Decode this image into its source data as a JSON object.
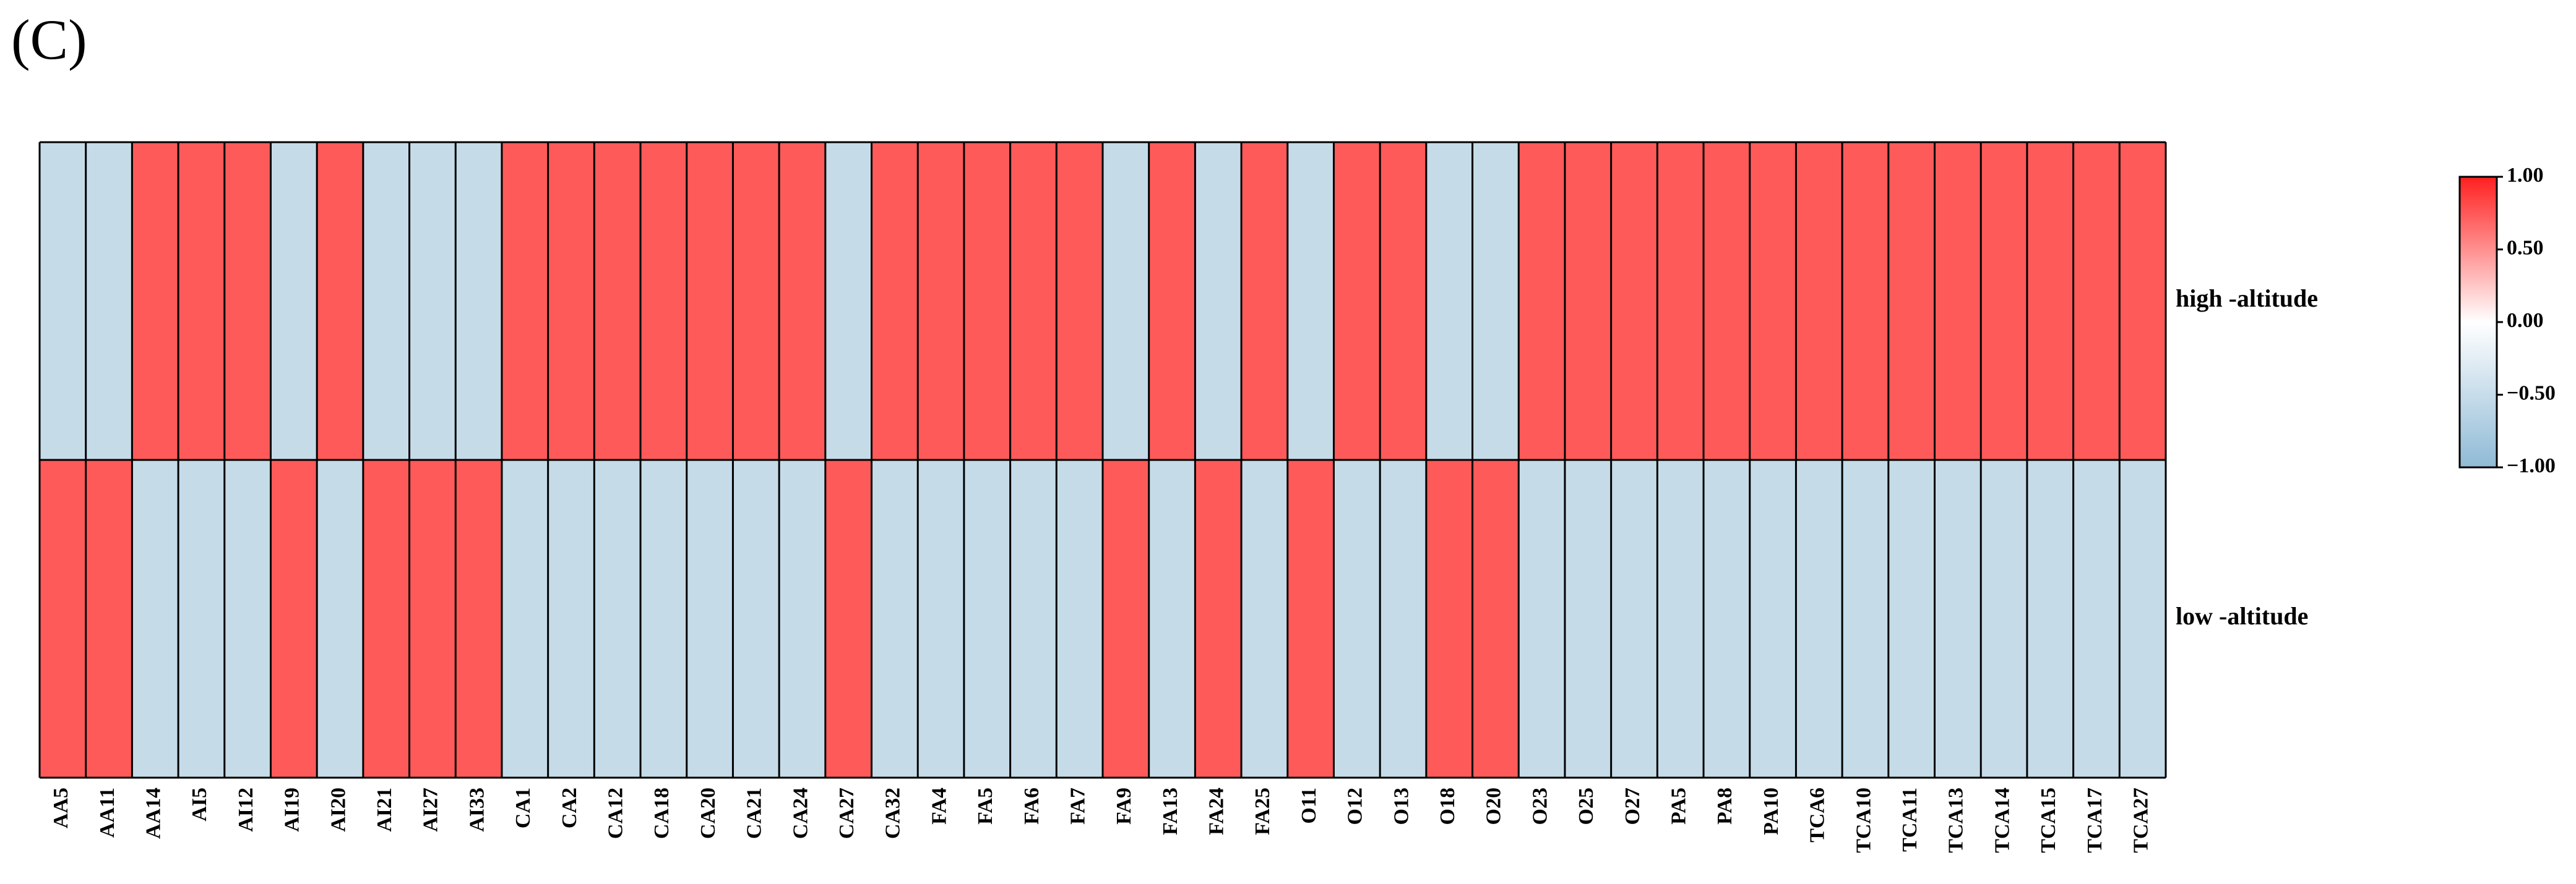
{
  "panel_label": "(C)",
  "chart_data": {
    "type": "heatmap",
    "columns": [
      "AA5",
      "AA11",
      "AA14",
      "AI5",
      "AI12",
      "AI19",
      "AI20",
      "AI21",
      "AI27",
      "AI33",
      "CA1",
      "CA2",
      "CA12",
      "CA18",
      "CA20",
      "CA21",
      "CA24",
      "CA27",
      "CA32",
      "FA4",
      "FA5",
      "FA6",
      "FA7",
      "FA9",
      "FA13",
      "FA24",
      "FA25",
      "O11",
      "O12",
      "O13",
      "O18",
      "O20",
      "O23",
      "O25",
      "O27",
      "PA5",
      "PA8",
      "PA10",
      "TCA6",
      "TCA10",
      "TCA11",
      "TCA13",
      "TCA14",
      "TCA15",
      "TCA17",
      "TCA27"
    ],
    "rows": [
      "high -altitude",
      "low -altitude"
    ],
    "values": [
      [
        -1,
        -1,
        1,
        1,
        1,
        -1,
        1,
        -1,
        -1,
        -1,
        1,
        1,
        1,
        1,
        1,
        1,
        1,
        -1,
        1,
        1,
        1,
        1,
        1,
        -1,
        1,
        -1,
        1,
        -1,
        1,
        1,
        -1,
        -1,
        1,
        1,
        1,
        1,
        1,
        1,
        1,
        1,
        1,
        1,
        1,
        1,
        1,
        1
      ],
      [
        1,
        1,
        -1,
        -1,
        -1,
        1,
        -1,
        1,
        1,
        1,
        -1,
        -1,
        -1,
        -1,
        -1,
        -1,
        -1,
        1,
        -1,
        -1,
        -1,
        -1,
        -1,
        1,
        -1,
        1,
        -1,
        1,
        -1,
        -1,
        1,
        1,
        -1,
        -1,
        -1,
        -1,
        -1,
        -1,
        -1,
        -1,
        -1,
        -1,
        -1,
        -1,
        -1,
        -1
      ]
    ],
    "colorbar": {
      "range": [
        -1,
        1
      ],
      "ticks": [
        1,
        0.5,
        0,
        -0.5,
        -1
      ],
      "tick_labels": [
        "1.00",
        "0.50",
        "0.00",
        "−0.50",
        "−1.00"
      ],
      "high_color": "#ff5a5a",
      "low_color": "#c5dbe8",
      "gradient_top": "#ff2020",
      "gradient_mid": "#ffffff",
      "gradient_bottom": "#8fbad6"
    }
  }
}
